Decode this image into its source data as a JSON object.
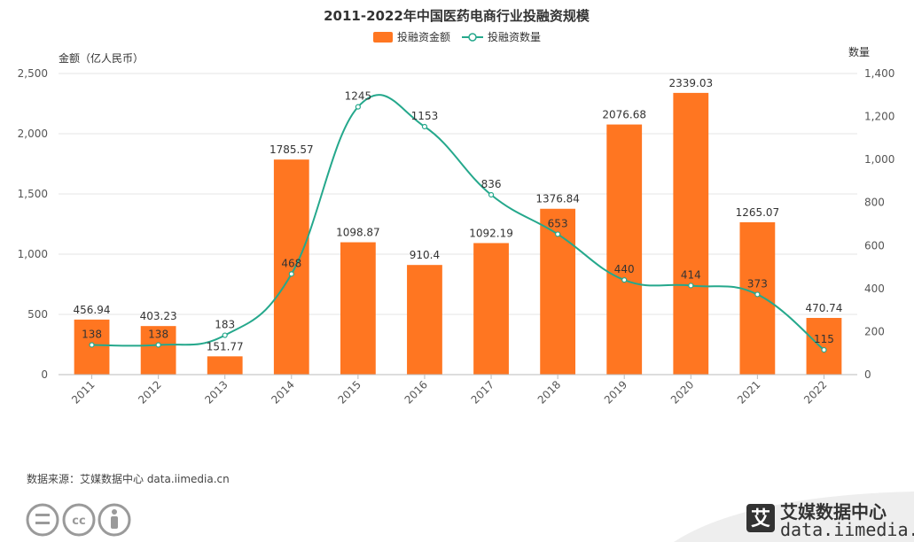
{
  "chart_data": {
    "type": "bar",
    "title": "2011-2022年中国医药电商行业投融资规模",
    "categories": [
      "2011",
      "2012",
      "2013",
      "2014",
      "2015",
      "2016",
      "2017",
      "2018",
      "2019",
      "2020",
      "2021",
      "2022"
    ],
    "series": [
      {
        "name": "投融资金额",
        "type": "bar",
        "axis": "left",
        "values": [
          456.94,
          403.23,
          151.77,
          1785.57,
          1098.87,
          910.4,
          1092.19,
          1376.84,
          2076.68,
          2339.03,
          1265.07,
          470.74
        ],
        "labels": [
          "456.94",
          "403.23",
          "151.77",
          "1785.57",
          "1098.87",
          "910.4",
          "1092.19",
          "1376.84",
          "2076.68",
          "2339.03",
          "1265.07",
          "470.74"
        ]
      },
      {
        "name": "投融资数量",
        "type": "line",
        "axis": "right",
        "values": [
          138,
          138,
          183,
          468,
          1245,
          1153,
          836,
          653,
          440,
          414,
          373,
          115
        ],
        "labels": [
          "138",
          "138",
          "183",
          "468",
          "1245",
          "1153",
          "836",
          "653",
          "440",
          "414",
          "373",
          "115"
        ]
      }
    ],
    "y_left": {
      "label": "金额（亿人民币）",
      "min": 0,
      "max": 2500,
      "ticks": [
        0,
        500,
        1000,
        1500,
        2000,
        2500
      ],
      "tick_labels": [
        "0",
        "500",
        "1,000",
        "1,500",
        "2,000",
        "2,500"
      ]
    },
    "y_right": {
      "label": "数量",
      "min": 0,
      "max": 1400,
      "ticks": [
        0,
        200,
        400,
        600,
        800,
        1000,
        1200,
        1400
      ],
      "tick_labels": [
        "0",
        "200",
        "400",
        "600",
        "800",
        "1,000",
        "1,200",
        "1,400"
      ]
    },
    "grid": true,
    "legend_position": "top-center",
    "colors": {
      "bar": "#FF7621",
      "line": "#25A88C"
    }
  },
  "source": "数据来源：艾媒数据中心 data.iimedia.cn",
  "brand": {
    "name": "艾媒数据中心",
    "url": "data.iimedia.cn",
    "logo_glyph": "艾"
  },
  "license_icons": [
    "cc-nd-icon",
    "cc-icon",
    "cc-by-icon"
  ]
}
